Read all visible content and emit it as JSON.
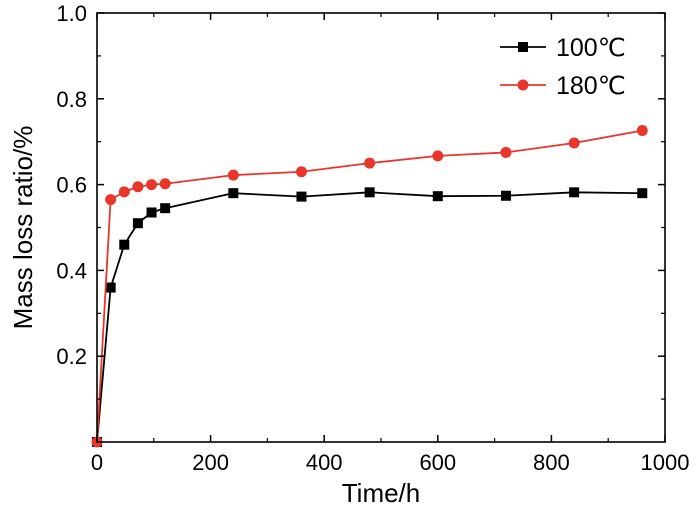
{
  "chart_data": {
    "type": "line",
    "xlabel": "Time/h",
    "ylabel": "Mass loss ratio/%",
    "xlim": [
      0,
      1000
    ],
    "ylim": [
      0,
      1.0
    ],
    "xticks": [
      0,
      200,
      400,
      600,
      800,
      1000
    ],
    "xtick_labels": [
      "0",
      "200",
      "400",
      "600",
      "800",
      "1000"
    ],
    "yticks": [
      0.2,
      0.4,
      0.6,
      0.8,
      1.0
    ],
    "ytick_labels": [
      "0.2",
      "0.4",
      "0.6",
      "0.8",
      "1.0"
    ],
    "grid": false,
    "legend_position": "top-right",
    "series": [
      {
        "name": "100℃",
        "color": "#000000",
        "marker": "square",
        "x": [
          0,
          24,
          48,
          72,
          96,
          120,
          240,
          360,
          480,
          600,
          720,
          840,
          960
        ],
        "y": [
          0.0,
          0.36,
          0.46,
          0.51,
          0.535,
          0.545,
          0.58,
          0.572,
          0.582,
          0.573,
          0.574,
          0.582,
          0.58
        ]
      },
      {
        "name": "180℃",
        "color": "#e8362c",
        "marker": "circle",
        "x": [
          0,
          24,
          48,
          72,
          96,
          120,
          240,
          360,
          480,
          600,
          720,
          840,
          960
        ],
        "y": [
          0.0,
          0.565,
          0.583,
          0.595,
          0.6,
          0.602,
          0.622,
          0.63,
          0.65,
          0.667,
          0.675,
          0.697,
          0.726
        ]
      }
    ]
  }
}
